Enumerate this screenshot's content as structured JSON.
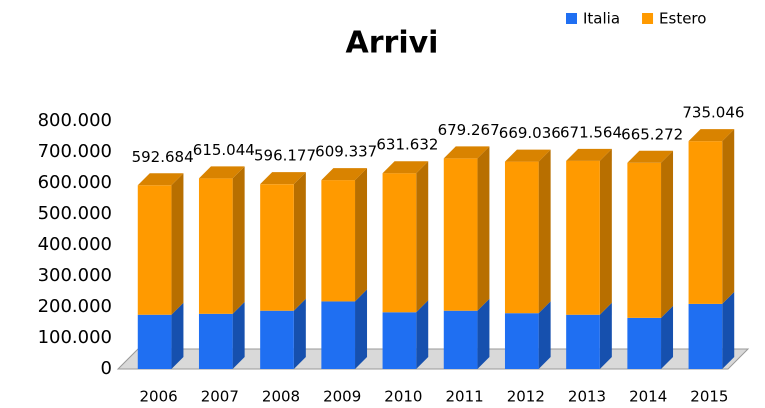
{
  "chart_data": {
    "type": "bar3d_stacked",
    "title": "Arrivi",
    "categories": [
      "2006",
      "2007",
      "2008",
      "2009",
      "2010",
      "2011",
      "2012",
      "2013",
      "2014",
      "2015"
    ],
    "series": [
      {
        "name": "Italia",
        "color": "#1f6ff2",
        "values": [
          175000,
          178000,
          188000,
          218000,
          183000,
          188000,
          180000,
          175000,
          165000,
          210000
        ]
      },
      {
        "name": "Estero",
        "color": "#ff9a00",
        "values": [
          417684,
          437044,
          408177,
          391337,
          448632,
          491267,
          489036,
          496564,
          500272,
          525046
        ]
      }
    ],
    "totals": {
      "values": [
        592684,
        615044,
        596177,
        609337,
        631632,
        679267,
        669036,
        671564,
        665272,
        735046
      ],
      "value_labels": [
        "592.684",
        "615.044",
        "596.177",
        "609.337",
        "631.632",
        "679.267",
        "669.036",
        "671.564",
        "665.272",
        "735.046"
      ]
    },
    "ylim": [
      0,
      800000
    ],
    "yticks": [
      0,
      {
        "value": 100000,
        "label": "100.000"
      },
      {
        "value": 200000,
        "label": "200.000"
      },
      {
        "value": 300000,
        "label": "300.000"
      },
      {
        "value": 400000,
        "label": "400.000"
      },
      {
        "value": 500000,
        "label": "500.000"
      },
      {
        "value": 600000,
        "label": "600.000"
      },
      {
        "value": 700000,
        "label": "700.000"
      },
      {
        "value": 800000,
        "label": "800.000"
      }
    ],
    "legend": "top-right"
  }
}
